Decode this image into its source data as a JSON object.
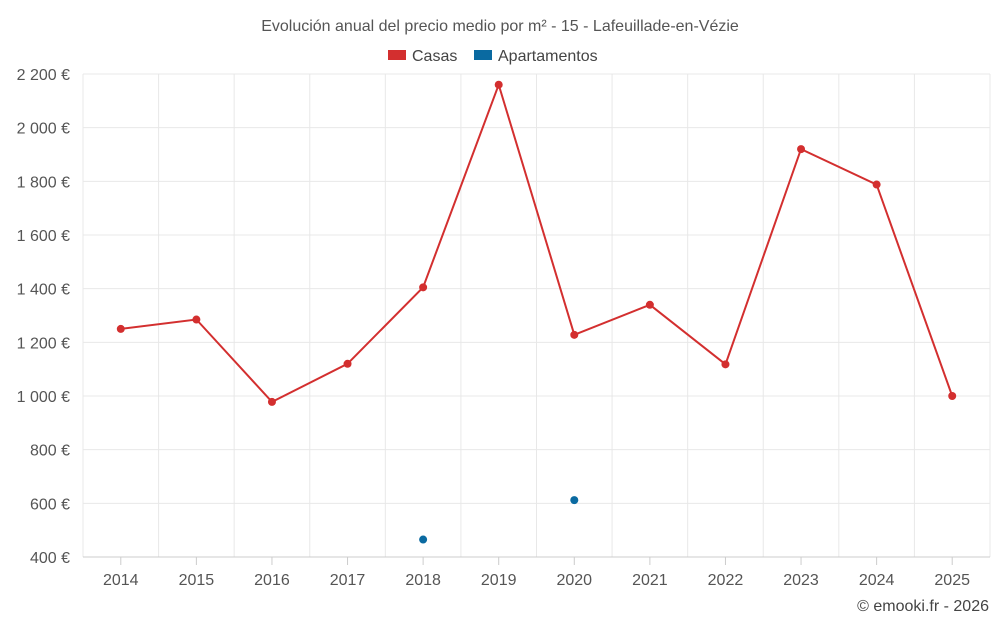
{
  "chart_data": {
    "type": "line",
    "title": "Evolución anual del precio medio por m² - 15 - Lafeuillade-en-Vézie",
    "categories": [
      "2014",
      "2015",
      "2016",
      "2017",
      "2018",
      "2019",
      "2020",
      "2021",
      "2022",
      "2023",
      "2024",
      "2025"
    ],
    "series": [
      {
        "name": "Casas",
        "color": "#d32f2f",
        "values": [
          1250,
          1285,
          978,
          1120,
          1405,
          2160,
          1228,
          1340,
          1118,
          1920,
          1788,
          1000
        ]
      },
      {
        "name": "Apartamentos",
        "color": "#0a6aa1",
        "values": [
          null,
          null,
          null,
          null,
          465,
          null,
          612,
          null,
          null,
          null,
          null,
          null
        ]
      }
    ],
    "ylim": [
      400,
      2200
    ],
    "yticks": [
      400,
      600,
      800,
      1000,
      1200,
      1400,
      1600,
      1800,
      2000,
      2200
    ],
    "ytick_labels": [
      "400 €",
      "600 €",
      "800 €",
      "1 000 €",
      "1 200 €",
      "1 400 €",
      "1 600 €",
      "1 800 €",
      "2 000 €",
      "2 200 €"
    ],
    "xlabel": "",
    "ylabel": "",
    "grid": true,
    "legend": "top-center",
    "credit": "© emooki.fr - 2026"
  }
}
